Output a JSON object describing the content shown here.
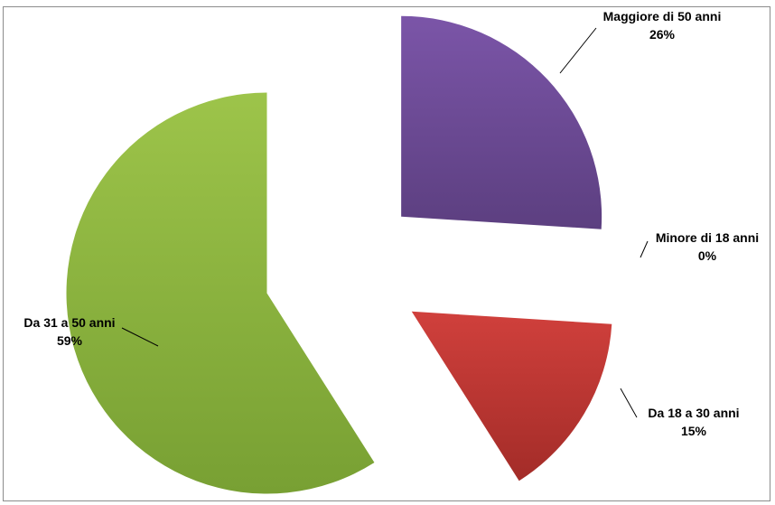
{
  "chart_data": {
    "type": "pie",
    "exploded": true,
    "slices": [
      {
        "label": "Maggiore di 50 anni",
        "value": 26,
        "value_label": "26%",
        "color": "#7b55a8",
        "color_dark": "#5c3f80"
      },
      {
        "label": "Minore di 18 anni",
        "value": 0,
        "value_label": "0%",
        "color": "#4f81bd",
        "color_dark": "#3a6190"
      },
      {
        "label": "Da 18 a 30 anni",
        "value": 15,
        "value_label": "15%",
        "color": "#d0403c",
        "color_dark": "#a32c28"
      },
      {
        "label": "Da 31 a 50 anni",
        "value": 59,
        "value_label": "59%",
        "color": "#9dc44a",
        "color_dark": "#78a033"
      }
    ],
    "legend": false,
    "data_labels": "outside-with-leader-lines"
  }
}
